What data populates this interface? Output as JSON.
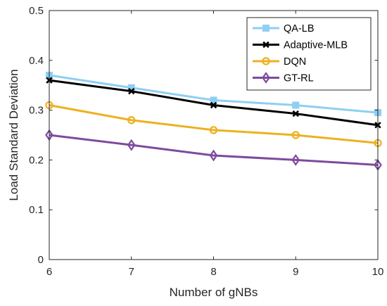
{
  "chart_data": {
    "type": "line",
    "title": "",
    "xlabel": "Number of gNBs",
    "ylabel": "Load Standard Deviation",
    "xlim": [
      6,
      10
    ],
    "ylim": [
      0,
      0.5
    ],
    "x": [
      6,
      7,
      8,
      9,
      10
    ],
    "xticks": [
      "6",
      "7",
      "8",
      "9",
      "10"
    ],
    "yticks": [
      "0",
      "0.1",
      "0.2",
      "0.3",
      "0.4",
      "0.5"
    ],
    "grid": false,
    "legend_position": "top-right",
    "series": [
      {
        "name": "QA-LB",
        "color": "#8ECFF3",
        "marker": "square",
        "values": [
          0.37,
          0.345,
          0.32,
          0.31,
          0.295
        ]
      },
      {
        "name": "Adaptive-MLB",
        "color": "#000000",
        "marker": "x",
        "values": [
          0.36,
          0.338,
          0.31,
          0.293,
          0.27
        ]
      },
      {
        "name": "DQN",
        "color": "#EDB120",
        "marker": "circle",
        "values": [
          0.31,
          0.28,
          0.26,
          0.25,
          0.234
        ]
      },
      {
        "name": "GT-RL",
        "color": "#7E4A9E",
        "marker": "diamond",
        "values": [
          0.25,
          0.23,
          0.209,
          0.2,
          0.19
        ]
      }
    ]
  }
}
